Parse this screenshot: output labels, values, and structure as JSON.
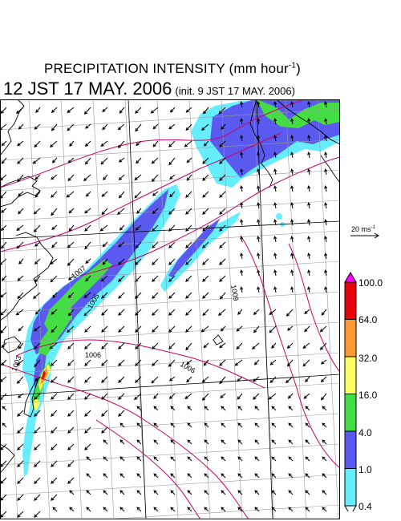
{
  "title": {
    "main": "PRECIPITATION INTENSITY (mm hour",
    "main_exponent": "-1",
    "main_close": ")",
    "time": "12 JST 17 MAY. 2006",
    "init": "(init. 9 JST 17 MAY. 2006)"
  },
  "wind_reference": {
    "label": "20 ms",
    "exponent": "-1"
  },
  "colorbar": {
    "labels": [
      "100.0",
      "64.0",
      "32.0",
      "16.0",
      "4.0",
      "1.0",
      "0.4"
    ],
    "colors": [
      "#ff00ff",
      "#e8000b",
      "#ff9933",
      "#ffff66",
      "#44dd44",
      "#5a5af0",
      "#66eeff",
      "#ffffff"
    ]
  },
  "isobar_labels": [
    "1007",
    "1005",
    "1006",
    "1006",
    "1009",
    "1003"
  ],
  "map_colors": {
    "isobar": "#cc0066",
    "coast": "#000000",
    "grid": "#999999",
    "arrow": "#000000"
  }
}
